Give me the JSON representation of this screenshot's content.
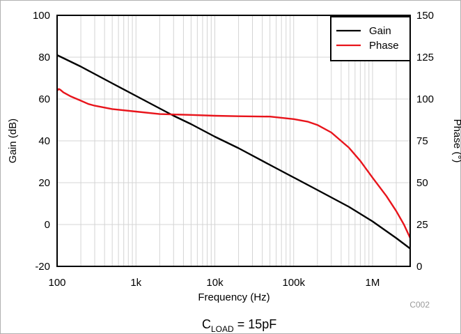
{
  "chart_data": {
    "type": "line",
    "xlabel": "Frequency (Hz)",
    "ylabel": "Gain (dB)",
    "y2label": "Phase (°)",
    "x_scale": "log",
    "xlim": [
      100,
      3000000
    ],
    "ylim": [
      -20,
      100
    ],
    "y2lim": [
      0,
      150
    ],
    "x_ticks": [
      100,
      1000,
      10000,
      100000,
      1000000
    ],
    "x_tick_labels": [
      "100",
      "1k",
      "10k",
      "100k",
      "1M"
    ],
    "y_ticks": [
      -20,
      0,
      20,
      40,
      60,
      80,
      100
    ],
    "y_tick_labels": [
      "-20",
      "0",
      "20",
      "40",
      "60",
      "80",
      "100"
    ],
    "y2_ticks": [
      0,
      25,
      50,
      75,
      100,
      125,
      150
    ],
    "y2_tick_labels": [
      "0",
      "25",
      "50",
      "75",
      "100",
      "125",
      "150"
    ],
    "grid": true,
    "legend_position": "top-right",
    "series": [
      {
        "name": "Gain",
        "axis": "left",
        "color": "#000000",
        "x": [
          100,
          200,
          500,
          1000,
          2000,
          3000,
          5000,
          10000,
          20000,
          50000,
          100000,
          200000,
          500000,
          1000000,
          2000000,
          3000000
        ],
        "y": [
          81,
          75.5,
          67.5,
          61.5,
          55.5,
          52,
          48,
          42,
          36.5,
          28.5,
          22.5,
          16.5,
          8.5,
          1.5,
          -6.5,
          -11.5
        ]
      },
      {
        "name": "Phase",
        "axis": "right",
        "color": "#e8141b",
        "x": [
          100,
          105,
          110,
          120,
          150,
          200,
          250,
          300,
          500,
          1000,
          2000,
          5000,
          10000,
          20000,
          50000,
          100000,
          150000,
          200000,
          300000,
          500000,
          700000,
          1000000,
          1500000,
          2000000,
          2500000,
          3000000
        ],
        "y": [
          105,
          106,
          105.5,
          104,
          101.5,
          99,
          97,
          96,
          94,
          92.5,
          91,
          90.5,
          90,
          89.7,
          89.5,
          88,
          86.5,
          84.5,
          80,
          71,
          63,
          53,
          42,
          33,
          25,
          17
        ]
      }
    ],
    "annotations": [
      "C002"
    ],
    "caption": {
      "prefix": "C",
      "subscript": "LOAD",
      "suffix": " = 15pF"
    }
  }
}
